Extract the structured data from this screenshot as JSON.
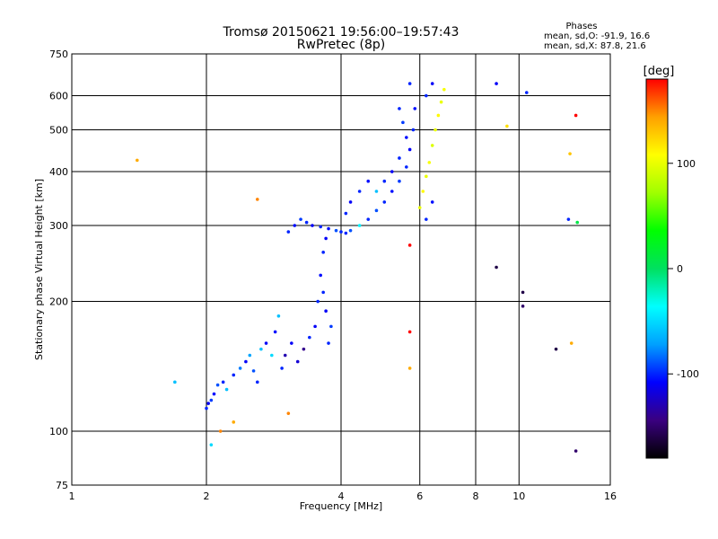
{
  "chart_data": {
    "type": "scatter",
    "title": "Tromsø 20150621 19:56:00–19:57:43",
    "subtitle": "RwPretec (8p)",
    "xlabel": "Frequency [MHz]",
    "ylabel": "Stationary phase Virtual Height [km]",
    "x_scale": "log2",
    "y_scale": "log",
    "xlim": [
      1,
      16
    ],
    "ylim": [
      75,
      750
    ],
    "x_ticks": [
      "1",
      "2",
      "4",
      "6",
      "8",
      "10",
      "16"
    ],
    "y_ticks": [
      "75",
      "100",
      "200",
      "300",
      "400",
      "500",
      "600",
      "750"
    ],
    "grid": true,
    "stats": {
      "header": "Phases",
      "line_o": "mean, sd,O: -91.9, 16.6",
      "line_x": "mean, sd,X:  87.8, 21.6"
    },
    "colorbar": {
      "label": "[deg]",
      "range": [
        -180,
        180
      ],
      "ticks": [
        "100",
        "0",
        "-100"
      ],
      "colors": [
        "#000000",
        "#3a0080",
        "#0000ff",
        "#00a0ff",
        "#00ffff",
        "#00e060",
        "#00ff00",
        "#a0ff00",
        "#ffff00",
        "#ffa000",
        "#ff0000"
      ]
    },
    "series": [
      {
        "values": [
          {
            "x": 2.0,
            "y": 113,
            "c": -100
          },
          {
            "x": 2.02,
            "y": 116,
            "c": -110
          },
          {
            "x": 2.05,
            "y": 118,
            "c": -95
          },
          {
            "x": 2.08,
            "y": 122,
            "c": -105
          },
          {
            "x": 2.12,
            "y": 128,
            "c": -90
          },
          {
            "x": 2.18,
            "y": 130,
            "c": -100
          },
          {
            "x": 2.22,
            "y": 125,
            "c": -60
          },
          {
            "x": 2.3,
            "y": 135,
            "c": -100
          },
          {
            "x": 2.38,
            "y": 140,
            "c": -80
          },
          {
            "x": 2.45,
            "y": 145,
            "c": -110
          },
          {
            "x": 2.5,
            "y": 150,
            "c": -70
          },
          {
            "x": 2.55,
            "y": 138,
            "c": -90
          },
          {
            "x": 2.6,
            "y": 130,
            "c": -100
          },
          {
            "x": 2.65,
            "y": 155,
            "c": -60
          },
          {
            "x": 2.72,
            "y": 160,
            "c": -110
          },
          {
            "x": 2.8,
            "y": 150,
            "c": -50
          },
          {
            "x": 2.85,
            "y": 170,
            "c": -105
          },
          {
            "x": 2.9,
            "y": 185,
            "c": -60
          },
          {
            "x": 2.95,
            "y": 140,
            "c": -100
          },
          {
            "x": 3.0,
            "y": 150,
            "c": -130
          },
          {
            "x": 3.1,
            "y": 160,
            "c": -110
          },
          {
            "x": 3.2,
            "y": 145,
            "c": -120
          },
          {
            "x": 3.3,
            "y": 155,
            "c": -140
          },
          {
            "x": 3.4,
            "y": 165,
            "c": -100
          },
          {
            "x": 3.5,
            "y": 175,
            "c": -110
          },
          {
            "x": 3.55,
            "y": 200,
            "c": -100
          },
          {
            "x": 3.6,
            "y": 230,
            "c": -105
          },
          {
            "x": 3.65,
            "y": 260,
            "c": -100
          },
          {
            "x": 3.7,
            "y": 280,
            "c": -110
          },
          {
            "x": 3.75,
            "y": 160,
            "c": -100
          },
          {
            "x": 3.8,
            "y": 175,
            "c": -95
          },
          {
            "x": 3.7,
            "y": 190,
            "c": -110
          },
          {
            "x": 3.65,
            "y": 210,
            "c": -100
          },
          {
            "x": 3.05,
            "y": 290,
            "c": -100
          },
          {
            "x": 3.15,
            "y": 300,
            "c": -105
          },
          {
            "x": 3.25,
            "y": 310,
            "c": -95
          },
          {
            "x": 3.35,
            "y": 305,
            "c": -100
          },
          {
            "x": 3.45,
            "y": 300,
            "c": -110
          },
          {
            "x": 3.6,
            "y": 298,
            "c": -100
          },
          {
            "x": 3.75,
            "y": 295,
            "c": -105
          },
          {
            "x": 3.9,
            "y": 292,
            "c": -90
          },
          {
            "x": 4.0,
            "y": 290,
            "c": -100
          },
          {
            "x": 4.1,
            "y": 288,
            "c": -100
          },
          {
            "x": 4.2,
            "y": 292,
            "c": -90
          },
          {
            "x": 4.4,
            "y": 300,
            "c": -40
          },
          {
            "x": 4.6,
            "y": 310,
            "c": -100
          },
          {
            "x": 4.8,
            "y": 325,
            "c": -90
          },
          {
            "x": 5.0,
            "y": 340,
            "c": -100
          },
          {
            "x": 5.2,
            "y": 360,
            "c": -105
          },
          {
            "x": 5.4,
            "y": 380,
            "c": -95
          },
          {
            "x": 5.6,
            "y": 410,
            "c": -100
          },
          {
            "x": 5.7,
            "y": 450,
            "c": -110
          },
          {
            "x": 5.8,
            "y": 500,
            "c": -100
          },
          {
            "x": 5.85,
            "y": 560,
            "c": -105
          },
          {
            "x": 4.1,
            "y": 320,
            "c": -100
          },
          {
            "x": 4.2,
            "y": 340,
            "c": -110
          },
          {
            "x": 4.4,
            "y": 360,
            "c": -100
          },
          {
            "x": 4.6,
            "y": 380,
            "c": -105
          },
          {
            "x": 4.8,
            "y": 360,
            "c": -60
          },
          {
            "x": 5.0,
            "y": 380,
            "c": -100
          },
          {
            "x": 5.2,
            "y": 400,
            "c": -110
          },
          {
            "x": 5.4,
            "y": 430,
            "c": -100
          },
          {
            "x": 5.6,
            "y": 480,
            "c": -105
          },
          {
            "x": 5.5,
            "y": 520,
            "c": -95
          },
          {
            "x": 5.4,
            "y": 560,
            "c": -100
          },
          {
            "x": 6.0,
            "y": 330,
            "c": 100
          },
          {
            "x": 6.1,
            "y": 360,
            "c": 110
          },
          {
            "x": 6.2,
            "y": 390,
            "c": 100
          },
          {
            "x": 6.3,
            "y": 420,
            "c": 105
          },
          {
            "x": 6.4,
            "y": 460,
            "c": 95
          },
          {
            "x": 6.5,
            "y": 500,
            "c": 100
          },
          {
            "x": 6.6,
            "y": 540,
            "c": 110
          },
          {
            "x": 6.7,
            "y": 580,
            "c": 100
          },
          {
            "x": 6.8,
            "y": 620,
            "c": 105
          },
          {
            "x": 6.2,
            "y": 310,
            "c": -100
          },
          {
            "x": 6.4,
            "y": 340,
            "c": -105
          },
          {
            "x": 6.2,
            "y": 600,
            "c": -100
          },
          {
            "x": 6.4,
            "y": 640,
            "c": -110
          },
          {
            "x": 5.7,
            "y": 640,
            "c": -100
          },
          {
            "x": 1.4,
            "y": 425,
            "c": 140
          },
          {
            "x": 1.7,
            "y": 130,
            "c": -60
          },
          {
            "x": 2.05,
            "y": 93,
            "c": -50
          },
          {
            "x": 2.15,
            "y": 100,
            "c": 150
          },
          {
            "x": 2.3,
            "y": 105,
            "c": 140
          },
          {
            "x": 2.6,
            "y": 345,
            "c": 150
          },
          {
            "x": 3.05,
            "y": 110,
            "c": 150
          },
          {
            "x": 5.7,
            "y": 140,
            "c": 140
          },
          {
            "x": 5.7,
            "y": 170,
            "c": 180
          },
          {
            "x": 5.7,
            "y": 270,
            "c": 180
          },
          {
            "x": 8.9,
            "y": 240,
            "c": -160
          },
          {
            "x": 8.9,
            "y": 640,
            "c": -110
          },
          {
            "x": 9.4,
            "y": 510,
            "c": 120
          },
          {
            "x": 10.2,
            "y": 195,
            "c": -150
          },
          {
            "x": 10.4,
            "y": 610,
            "c": -100
          },
          {
            "x": 10.2,
            "y": 210,
            "c": -160
          },
          {
            "x": 12.1,
            "y": 155,
            "c": -160
          },
          {
            "x": 12.9,
            "y": 310,
            "c": -100
          },
          {
            "x": 13.4,
            "y": 540,
            "c": 180
          },
          {
            "x": 13.4,
            "y": 90,
            "c": -150
          },
          {
            "x": 13.1,
            "y": 160,
            "c": 140
          },
          {
            "x": 13.0,
            "y": 440,
            "c": 130
          },
          {
            "x": 13.5,
            "y": 305,
            "c": 10
          }
        ]
      }
    ]
  }
}
